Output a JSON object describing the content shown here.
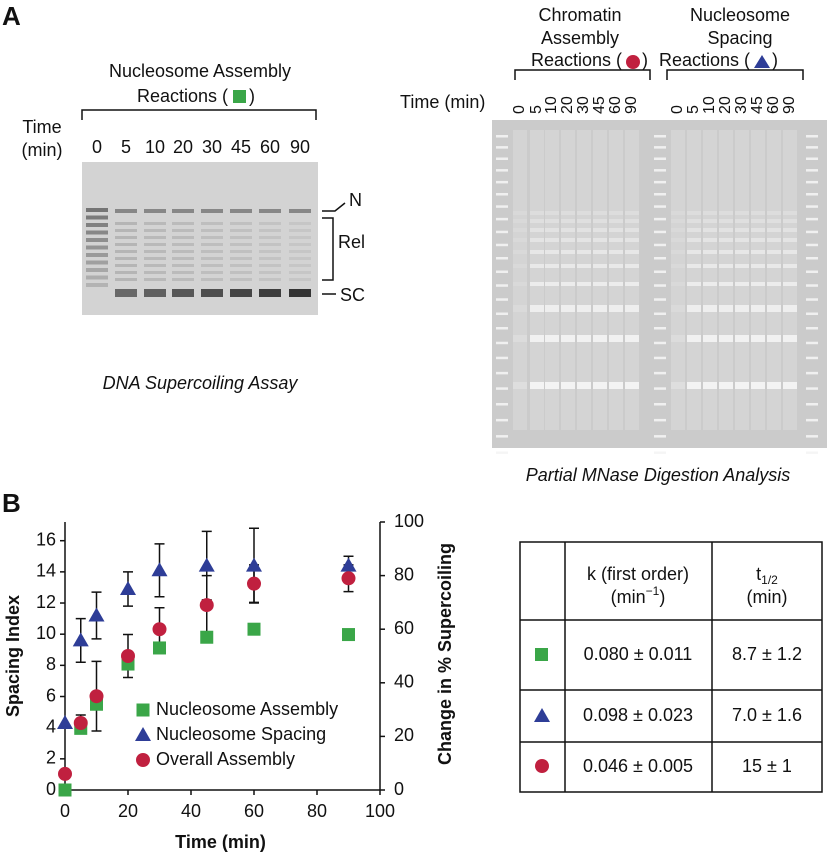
{
  "panel_a": {
    "label": "A",
    "left": {
      "title": [
        "Nucleosome Assembly",
        "Reactions ("
      ],
      "title_close": ")",
      "time_label": [
        "Time",
        "(min)"
      ],
      "lanes": [
        "0",
        "5",
        "10",
        "20",
        "30",
        "45",
        "60",
        "90"
      ],
      "band_labels": [
        "N",
        "Rel",
        "SC"
      ],
      "caption": "DNA Supercoiling Assay"
    },
    "right": {
      "groups": [
        {
          "title": [
            "Chromatin",
            "Assembly",
            "Reactions ("
          ],
          "close": ")"
        },
        {
          "title": [
            "Nucleosome",
            "Spacing",
            "Reactions ("
          ],
          "close": ")"
        }
      ],
      "time_label": "Time (min)",
      "lanes": [
        "0",
        "5",
        "10",
        "20",
        "30",
        "45",
        "60",
        "90"
      ],
      "caption": "Partial MNase Digestion Analysis"
    }
  },
  "panel_b": {
    "label": "B",
    "table": {
      "headers": [
        {
          "line1": "k (first order)",
          "line2": "(min",
          "sup": "−1",
          "line2_end": ")"
        },
        {
          "line1": "t",
          "sub": "1/2",
          "line2": "(min)"
        }
      ],
      "rows": [
        [
          "0.080 ± 0.011",
          "8.7 ± 1.2"
        ],
        [
          "0.098 ± 0.023",
          "7.0 ± 1.6"
        ],
        [
          "0.046 ± 0.005",
          "15 ± 1"
        ]
      ]
    }
  },
  "chart_data": {
    "type": "scatter",
    "xlabel": "Time (min)",
    "ylabel": "Spacing Index",
    "y2label": "Change in % Supercoiling",
    "x": [
      0,
      5,
      10,
      20,
      30,
      45,
      60,
      90
    ],
    "series": [
      {
        "name": "Nucleosome Assembly",
        "color": "#3aa648",
        "marker": "square",
        "axis": "y2",
        "values": [
          0,
          23,
          32,
          47,
          53,
          57,
          60,
          58
        ],
        "errors": [
          0,
          2,
          2,
          2,
          2,
          2,
          1,
          2
        ]
      },
      {
        "name": "Nucleosome Spacing",
        "color": "#2e3d97",
        "marker": "triangle",
        "values": [
          4.3,
          9.6,
          11.2,
          12.9,
          14.1,
          14.4,
          14.4,
          14.4
        ],
        "errors": [
          0,
          1.4,
          1.5,
          1.1,
          1.7,
          2.2,
          2.4,
          0.6
        ]
      },
      {
        "name": "Overall Assembly",
        "color": "#c0203f",
        "marker": "circle",
        "axis": "y2",
        "values": [
          6,
          25,
          35,
          50,
          60,
          69,
          77,
          79
        ],
        "errors": [
          0,
          3,
          13,
          8,
          8,
          11,
          7,
          5
        ]
      }
    ],
    "xlim": [
      0,
      100
    ],
    "xticks": [
      0,
      20,
      40,
      60,
      80,
      100
    ],
    "ylim": [
      0,
      17.2
    ],
    "yticks": [
      0,
      2,
      4,
      6,
      8,
      10,
      12,
      14,
      16
    ],
    "y2lim": [
      0,
      100
    ],
    "y2ticks": [
      0,
      20,
      40,
      60,
      80,
      100
    ]
  }
}
